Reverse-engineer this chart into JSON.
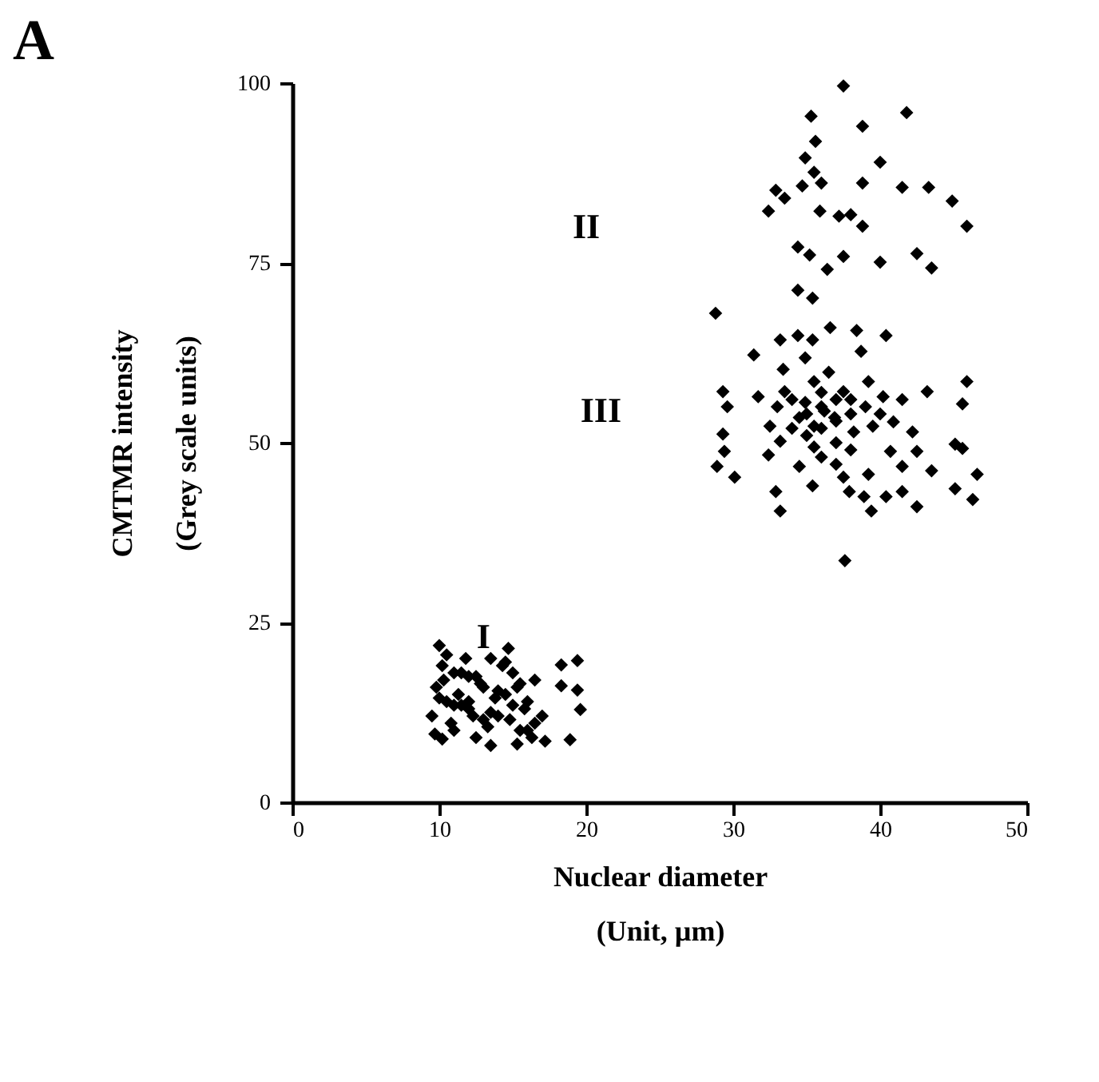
{
  "chart_data": {
    "type": "scatter",
    "title": "A",
    "xlabel": "Nuclear diameter\n(Unit, µm)",
    "ylabel": "CMTMR intensity\n(Grey scale units)",
    "xlim": [
      0,
      50
    ],
    "xticks": [
      0,
      10,
      20,
      30,
      40,
      50
    ],
    "ylim": [
      0,
      100
    ],
    "yticks": [
      0,
      25,
      50,
      75,
      100
    ],
    "grid": false,
    "marker": "diamond",
    "annotations": [
      "II",
      "III",
      "I"
    ],
    "series": [
      {
        "color": "#000000",
        "x": [
          37.5,
          35.3,
          38.8,
          41.8,
          35.6,
          34.9,
          35.5,
          40.0,
          32.9,
          34.7,
          36.0,
          38.8,
          41.5,
          43.3,
          44.9,
          32.4,
          33.5,
          35.9,
          37.2,
          38.0,
          38.8,
          45.9,
          34.4,
          35.2,
          37.5,
          36.4,
          40.0,
          42.5,
          43.5,
          34.4,
          35.4,
          28.8,
          36.6,
          38.4,
          40.4,
          33.2,
          34.4,
          35.4,
          31.4,
          38.7,
          33.4,
          29.3,
          29.6,
          31.7,
          33.5,
          34.9,
          35.5,
          36.5,
          34.9,
          37.5,
          39.2,
          40.2,
          41.5,
          43.2,
          45.9,
          45.6,
          29.3,
          29.4,
          28.9,
          30.1,
          32.5,
          32.4,
          33.2,
          34.5,
          35.5,
          36.2,
          36.9,
          35.5,
          34.5,
          35.4,
          32.9,
          33.2,
          38.2,
          39.5,
          40.9,
          42.2,
          40.7,
          41.5,
          42.5,
          45.1,
          45.6,
          43.5,
          46.6,
          45.1,
          46.3,
          37.5,
          37.9,
          39.2,
          38.9,
          39.4,
          40.4,
          41.5,
          42.5,
          37.6,
          36,
          37,
          35,
          36,
          38,
          34,
          37,
          36,
          38,
          35,
          39,
          37,
          36,
          34,
          38,
          33,
          40,
          37,
          18.3,
          19.4,
          18.3,
          19.4,
          19.6,
          18.9,
          17.2,
          15.3,
          13.5,
          14.7,
          10.0,
          9.5,
          9.8,
          10.2,
          10.5,
          11.0,
          11.5,
          12.0,
          12.5,
          13.0,
          13.5,
          14.0,
          14.5,
          15.0,
          15.5,
          16.0,
          16.5,
          17.0,
          9.7,
          10.3,
          10.8,
          11.3,
          11.8,
          12.3,
          12.8,
          13.3,
          13.8,
          14.3,
          14.8,
          15.3,
          15.8,
          16.3,
          10.0,
          11.0,
          12.0,
          13.0,
          14.0,
          15.0,
          16.0,
          10.5,
          11.5,
          12.5,
          13.5,
          14.5,
          15.5,
          16.5,
          11.0,
          12.0,
          10.2
        ],
        "values": [
          99.6,
          95.4,
          94.0,
          95.9,
          91.9,
          89.6,
          87.6,
          89.0,
          85.1,
          85.7,
          86.1,
          86.1,
          85.5,
          85.5,
          83.6,
          82.2,
          84.0,
          82.2,
          81.5,
          81.7,
          80.1,
          80.1,
          77.2,
          76.1,
          75.9,
          74.1,
          75.1,
          76.3,
          74.3,
          71.2,
          70.1,
          68.0,
          66.0,
          65.6,
          64.9,
          64.3,
          64.9,
          64.3,
          62.2,
          62.7,
          60.2,
          57.1,
          55.0,
          56.4,
          57.1,
          55.6,
          58.5,
          59.8,
          61.8,
          57.1,
          58.5,
          56.4,
          56.0,
          57.1,
          58.5,
          55.4,
          51.2,
          48.8,
          46.7,
          45.2,
          52.3,
          48.3,
          50.2,
          53.5,
          52.3,
          54.4,
          53.5,
          49.4,
          46.7,
          44.0,
          43.2,
          40.5,
          51.5,
          52.3,
          52.9,
          51.5,
          48.8,
          46.7,
          48.8,
          49.8,
          49.2,
          46.1,
          45.6,
          43.6,
          42.1,
          45.2,
          43.2,
          45.6,
          42.5,
          40.5,
          42.5,
          43.2,
          41.1,
          33.6,
          52,
          56,
          54,
          57,
          54,
          56,
          50,
          48,
          56,
          51,
          55,
          53,
          55,
          52,
          49,
          55,
          54,
          47,
          19.1,
          19.7,
          16.2,
          15.6,
          12.9,
          8.7,
          8.5,
          8.1,
          7.9,
          21.4,
          21.8,
          12.0,
          16.0,
          19.0,
          14.0,
          10.0,
          18.0,
          13.0,
          9.0,
          16.0,
          20.0,
          12.0,
          15.0,
          18.0,
          10.0,
          14.0,
          17.0,
          12.0,
          9.5,
          17.0,
          11.0,
          15.0,
          20.0,
          12.0,
          16.5,
          10.5,
          14.5,
          19.0,
          11.5,
          16.0,
          13.0,
          9.0,
          14.5,
          13.5,
          17.5,
          11.5,
          15.5,
          13.5,
          10.0,
          20.5,
          13.5,
          17.5,
          12.5,
          19.5,
          16.5,
          11.0,
          18.0,
          14.0,
          8.8
        ]
      }
    ]
  }
}
